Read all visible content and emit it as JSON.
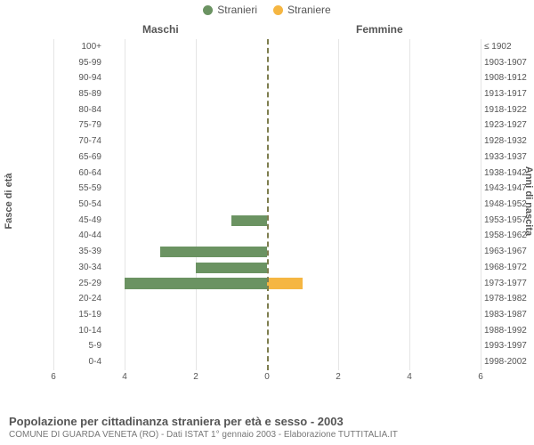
{
  "legend": {
    "male": {
      "label": "Stranieri",
      "color": "#6b9362"
    },
    "female": {
      "label": "Straniere",
      "color": "#f5b642"
    }
  },
  "panels": {
    "left": "Maschi",
    "right": "Femmine"
  },
  "yaxis": {
    "left_title": "Fasce di età",
    "right_title": "Anni di nascita"
  },
  "xaxis": {
    "max": 6,
    "ticks": [
      0,
      2,
      4,
      6
    ]
  },
  "chart": {
    "type": "bar-pyramid",
    "grid_color": "#e5e5e5",
    "zero_line_color": "#7e7e4f",
    "background_color": "#ffffff",
    "bar_height_ratio": 0.7,
    "rows": [
      {
        "age": "100+",
        "birth": "≤ 1902",
        "m": 0,
        "f": 0
      },
      {
        "age": "95-99",
        "birth": "1903-1907",
        "m": 0,
        "f": 0
      },
      {
        "age": "90-94",
        "birth": "1908-1912",
        "m": 0,
        "f": 0
      },
      {
        "age": "85-89",
        "birth": "1913-1917",
        "m": 0,
        "f": 0
      },
      {
        "age": "80-84",
        "birth": "1918-1922",
        "m": 0,
        "f": 0
      },
      {
        "age": "75-79",
        "birth": "1923-1927",
        "m": 0,
        "f": 0
      },
      {
        "age": "70-74",
        "birth": "1928-1932",
        "m": 0,
        "f": 0
      },
      {
        "age": "65-69",
        "birth": "1933-1937",
        "m": 0,
        "f": 0
      },
      {
        "age": "60-64",
        "birth": "1938-1942",
        "m": 0,
        "f": 0
      },
      {
        "age": "55-59",
        "birth": "1943-1947",
        "m": 0,
        "f": 0
      },
      {
        "age": "50-54",
        "birth": "1948-1952",
        "m": 0,
        "f": 0
      },
      {
        "age": "45-49",
        "birth": "1953-1957",
        "m": 1,
        "f": 0
      },
      {
        "age": "40-44",
        "birth": "1958-1962",
        "m": 0,
        "f": 0
      },
      {
        "age": "35-39",
        "birth": "1963-1967",
        "m": 3,
        "f": 0
      },
      {
        "age": "30-34",
        "birth": "1968-1972",
        "m": 2,
        "f": 0
      },
      {
        "age": "25-29",
        "birth": "1973-1977",
        "m": 4,
        "f": 1
      },
      {
        "age": "20-24",
        "birth": "1978-1982",
        "m": 0,
        "f": 0
      },
      {
        "age": "15-19",
        "birth": "1983-1987",
        "m": 0,
        "f": 0
      },
      {
        "age": "10-14",
        "birth": "1988-1992",
        "m": 0,
        "f": 0
      },
      {
        "age": "5-9",
        "birth": "1993-1997",
        "m": 0,
        "f": 0
      },
      {
        "age": "0-4",
        "birth": "1998-2002",
        "m": 0,
        "f": 0
      }
    ]
  },
  "footer": {
    "title": "Popolazione per cittadinanza straniera per età e sesso - 2003",
    "subtitle": "COMUNE DI GUARDA VENETA (RO) - Dati ISTAT 1° gennaio 2003 - Elaborazione TUTTITALIA.IT"
  }
}
